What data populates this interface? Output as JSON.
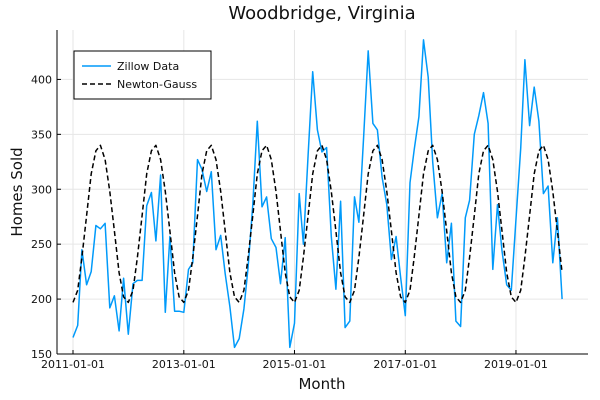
{
  "chart_data": {
    "type": "line",
    "title": "Woodbridge, Virginia",
    "xlabel": "Month",
    "ylabel": "Homes Sold",
    "x_axis": {
      "type": "date",
      "range": [
        "2011-01-01",
        "2020-02-01"
      ],
      "ticks": [
        "2011-01-01",
        "2013-01-01",
        "2015-01-01",
        "2017-01-01",
        "2019-01-01"
      ]
    },
    "y_axis": {
      "range": [
        150,
        445
      ],
      "ticks": [
        150,
        200,
        250,
        300,
        350,
        400
      ]
    },
    "grid": true,
    "legend": {
      "placement": "top-left"
    },
    "series": [
      {
        "name": "Zillow Data",
        "style": "solid",
        "color": "#009AFA",
        "values": [
          [
            "2011-01-01",
            165
          ],
          [
            "2011-02-01",
            176
          ],
          [
            "2011-03-01",
            245
          ],
          [
            "2011-04-01",
            213
          ],
          [
            "2011-05-01",
            225
          ],
          [
            "2011-06-01",
            267
          ],
          [
            "2011-07-01",
            264
          ],
          [
            "2011-08-01",
            269
          ],
          [
            "2011-09-01",
            192
          ],
          [
            "2011-10-01",
            203
          ],
          [
            "2011-11-01",
            171
          ],
          [
            "2011-12-01",
            219
          ],
          [
            "2012-01-01",
            168
          ],
          [
            "2012-02-01",
            214
          ],
          [
            "2012-03-01",
            217
          ],
          [
            "2012-04-01",
            217
          ],
          [
            "2012-05-01",
            285
          ],
          [
            "2012-06-01",
            297
          ],
          [
            "2012-07-01",
            253
          ],
          [
            "2012-08-01",
            313
          ],
          [
            "2012-09-01",
            188
          ],
          [
            "2012-10-01",
            257
          ],
          [
            "2012-11-01",
            189
          ],
          [
            "2012-12-01",
            189
          ],
          [
            "2013-01-01",
            188
          ],
          [
            "2013-02-01",
            227
          ],
          [
            "2013-03-01",
            233
          ],
          [
            "2013-04-01",
            327
          ],
          [
            "2013-05-01",
            318
          ],
          [
            "2013-06-01",
            298
          ],
          [
            "2013-07-01",
            316
          ],
          [
            "2013-08-01",
            245
          ],
          [
            "2013-09-01",
            258
          ],
          [
            "2013-10-01",
            223
          ],
          [
            "2013-11-01",
            193
          ],
          [
            "2013-12-01",
            156
          ],
          [
            "2014-01-01",
            164
          ],
          [
            "2014-02-01",
            191
          ],
          [
            "2014-03-01",
            229
          ],
          [
            "2014-04-01",
            286
          ],
          [
            "2014-05-01",
            362
          ],
          [
            "2014-06-01",
            284
          ],
          [
            "2014-07-01",
            293
          ],
          [
            "2014-08-01",
            255
          ],
          [
            "2014-09-01",
            247
          ],
          [
            "2014-10-01",
            214
          ],
          [
            "2014-11-01",
            256
          ],
          [
            "2014-12-01",
            156
          ],
          [
            "2015-01-01",
            178
          ],
          [
            "2015-02-01",
            296
          ],
          [
            "2015-03-01",
            250
          ],
          [
            "2015-04-01",
            331
          ],
          [
            "2015-05-01",
            407
          ],
          [
            "2015-06-01",
            354
          ],
          [
            "2015-07-01",
            334
          ],
          [
            "2015-08-01",
            338
          ],
          [
            "2015-09-01",
            257
          ],
          [
            "2015-10-01",
            209
          ],
          [
            "2015-11-01",
            289
          ],
          [
            "2015-12-01",
            174
          ],
          [
            "2016-01-01",
            180
          ],
          [
            "2016-02-01",
            293
          ],
          [
            "2016-03-01",
            270
          ],
          [
            "2016-04-01",
            347
          ],
          [
            "2016-05-01",
            426
          ],
          [
            "2016-06-01",
            360
          ],
          [
            "2016-07-01",
            354
          ],
          [
            "2016-08-01",
            311
          ],
          [
            "2016-09-01",
            286
          ],
          [
            "2016-10-01",
            236
          ],
          [
            "2016-11-01",
            257
          ],
          [
            "2016-12-01",
            220
          ],
          [
            "2017-01-01",
            185
          ],
          [
            "2017-02-01",
            306
          ],
          [
            "2017-03-01",
            336
          ],
          [
            "2017-04-01",
            366
          ],
          [
            "2017-05-01",
            436
          ],
          [
            "2017-06-01",
            402
          ],
          [
            "2017-07-01",
            325
          ],
          [
            "2017-08-01",
            274
          ],
          [
            "2017-09-01",
            296
          ],
          [
            "2017-10-01",
            233
          ],
          [
            "2017-11-01",
            269
          ],
          [
            "2017-12-01",
            180
          ],
          [
            "2018-01-01",
            175
          ],
          [
            "2018-02-01",
            274
          ],
          [
            "2018-03-01",
            290
          ],
          [
            "2018-04-01",
            350
          ],
          [
            "2018-05-01",
            367
          ],
          [
            "2018-06-01",
            388
          ],
          [
            "2018-07-01",
            360
          ],
          [
            "2018-08-01",
            227
          ],
          [
            "2018-09-01",
            286
          ],
          [
            "2018-10-01",
            244
          ],
          [
            "2018-11-01",
            213
          ],
          [
            "2018-12-01",
            208
          ],
          [
            "2019-01-01",
            273
          ],
          [
            "2019-02-01",
            337
          ],
          [
            "2019-03-01",
            418
          ],
          [
            "2019-04-01",
            358
          ],
          [
            "2019-05-01",
            393
          ],
          [
            "2019-06-01",
            362
          ],
          [
            "2019-07-01",
            296
          ],
          [
            "2019-08-01",
            303
          ],
          [
            "2019-09-01",
            233
          ],
          [
            "2019-10-01",
            274
          ],
          [
            "2019-11-01",
            200
          ]
        ]
      },
      {
        "name": "Newton-Gauss",
        "style": "dashed",
        "color": "#000000",
        "values": [
          [
            "2011-01-01",
            197
          ],
          [
            "2011-02-01",
            208
          ],
          [
            "2011-03-01",
            238
          ],
          [
            "2011-04-01",
            276
          ],
          [
            "2011-05-01",
            314
          ],
          [
            "2011-06-01",
            335
          ],
          [
            "2011-07-01",
            340
          ],
          [
            "2011-08-01",
            327
          ],
          [
            "2011-09-01",
            298
          ],
          [
            "2011-10-01",
            262
          ],
          [
            "2011-11-01",
            224
          ],
          [
            "2011-12-01",
            202
          ],
          [
            "2012-01-01",
            197
          ],
          [
            "2012-02-01",
            208
          ],
          [
            "2012-03-01",
            238
          ],
          [
            "2012-04-01",
            276
          ],
          [
            "2012-05-01",
            314
          ],
          [
            "2012-06-01",
            335
          ],
          [
            "2012-07-01",
            340
          ],
          [
            "2012-08-01",
            327
          ],
          [
            "2012-09-01",
            298
          ],
          [
            "2012-10-01",
            262
          ],
          [
            "2012-11-01",
            224
          ],
          [
            "2012-12-01",
            202
          ],
          [
            "2013-01-01",
            197
          ],
          [
            "2013-02-01",
            208
          ],
          [
            "2013-03-01",
            238
          ],
          [
            "2013-04-01",
            276
          ],
          [
            "2013-05-01",
            314
          ],
          [
            "2013-06-01",
            335
          ],
          [
            "2013-07-01",
            340
          ],
          [
            "2013-08-01",
            327
          ],
          [
            "2013-09-01",
            298
          ],
          [
            "2013-10-01",
            262
          ],
          [
            "2013-11-01",
            224
          ],
          [
            "2013-12-01",
            202
          ],
          [
            "2014-01-01",
            197
          ],
          [
            "2014-02-01",
            208
          ],
          [
            "2014-03-01",
            238
          ],
          [
            "2014-04-01",
            276
          ],
          [
            "2014-05-01",
            314
          ],
          [
            "2014-06-01",
            335
          ],
          [
            "2014-07-01",
            340
          ],
          [
            "2014-08-01",
            327
          ],
          [
            "2014-09-01",
            298
          ],
          [
            "2014-10-01",
            262
          ],
          [
            "2014-11-01",
            224
          ],
          [
            "2014-12-01",
            202
          ],
          [
            "2015-01-01",
            197
          ],
          [
            "2015-02-01",
            208
          ],
          [
            "2015-03-01",
            238
          ],
          [
            "2015-04-01",
            276
          ],
          [
            "2015-05-01",
            314
          ],
          [
            "2015-06-01",
            335
          ],
          [
            "2015-07-01",
            340
          ],
          [
            "2015-08-01",
            327
          ],
          [
            "2015-09-01",
            298
          ],
          [
            "2015-10-01",
            262
          ],
          [
            "2015-11-01",
            224
          ],
          [
            "2015-12-01",
            202
          ],
          [
            "2016-01-01",
            197
          ],
          [
            "2016-02-01",
            208
          ],
          [
            "2016-03-01",
            238
          ],
          [
            "2016-04-01",
            276
          ],
          [
            "2016-05-01",
            314
          ],
          [
            "2016-06-01",
            335
          ],
          [
            "2016-07-01",
            340
          ],
          [
            "2016-08-01",
            327
          ],
          [
            "2016-09-01",
            298
          ],
          [
            "2016-10-01",
            262
          ],
          [
            "2016-11-01",
            224
          ],
          [
            "2016-12-01",
            202
          ],
          [
            "2017-01-01",
            197
          ],
          [
            "2017-02-01",
            208
          ],
          [
            "2017-03-01",
            238
          ],
          [
            "2017-04-01",
            276
          ],
          [
            "2017-05-01",
            314
          ],
          [
            "2017-06-01",
            335
          ],
          [
            "2017-07-01",
            340
          ],
          [
            "2017-08-01",
            327
          ],
          [
            "2017-09-01",
            298
          ],
          [
            "2017-10-01",
            262
          ],
          [
            "2017-11-01",
            224
          ],
          [
            "2017-12-01",
            202
          ],
          [
            "2018-01-01",
            197
          ],
          [
            "2018-02-01",
            208
          ],
          [
            "2018-03-01",
            238
          ],
          [
            "2018-04-01",
            276
          ],
          [
            "2018-05-01",
            314
          ],
          [
            "2018-06-01",
            335
          ],
          [
            "2018-07-01",
            340
          ],
          [
            "2018-08-01",
            327
          ],
          [
            "2018-09-01",
            298
          ],
          [
            "2018-10-01",
            262
          ],
          [
            "2018-11-01",
            224
          ],
          [
            "2018-12-01",
            202
          ],
          [
            "2019-01-01",
            197
          ],
          [
            "2019-02-01",
            208
          ],
          [
            "2019-03-01",
            238
          ],
          [
            "2019-04-01",
            276
          ],
          [
            "2019-05-01",
            314
          ],
          [
            "2019-06-01",
            335
          ],
          [
            "2019-07-01",
            340
          ],
          [
            "2019-08-01",
            327
          ],
          [
            "2019-09-01",
            298
          ],
          [
            "2019-10-01",
            262
          ],
          [
            "2019-11-01",
            224
          ]
        ]
      }
    ]
  }
}
